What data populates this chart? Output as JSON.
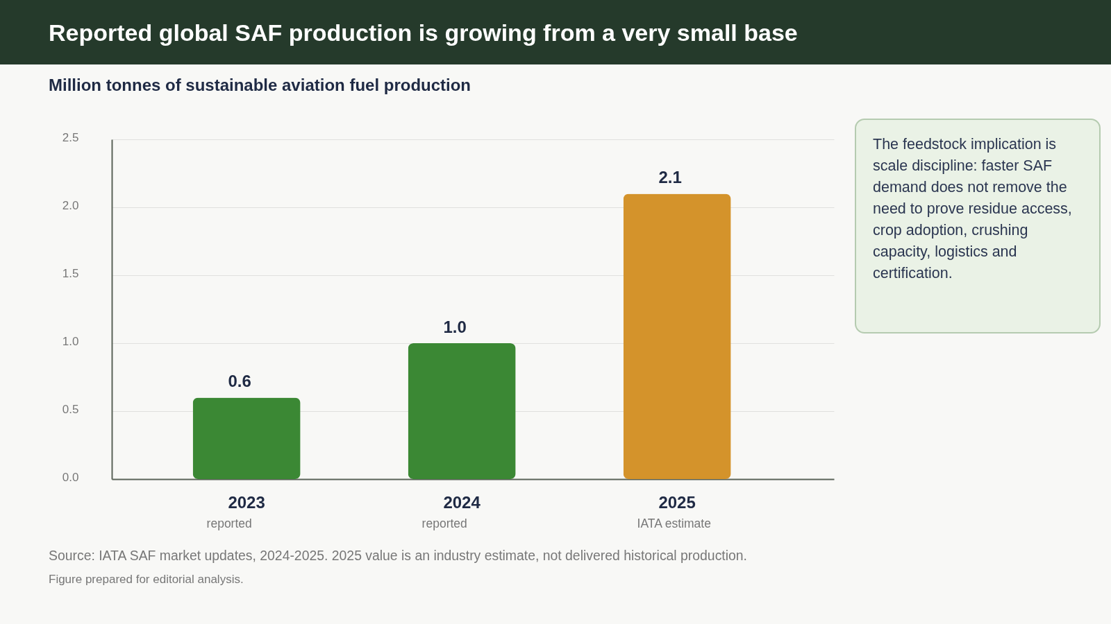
{
  "chart_data": {
    "type": "bar",
    "title": "Reported global SAF production is growing from a very small base",
    "subtitle": "Million tonnes of sustainable aviation fuel production",
    "categories": [
      "2023",
      "2024",
      "2025"
    ],
    "values": [
      0.6,
      1.0,
      2.1
    ],
    "colors": [
      "#3b8834",
      "#3b8834",
      "#d4932b"
    ],
    "value_labels": [
      "0.6",
      "1.0",
      "2.1"
    ],
    "ylim": [
      0,
      2.5
    ],
    "yticks": [
      {
        "value": 0,
        "label": "0.0"
      },
      0.5,
      {
        "value": 1,
        "label": "1.0"
      },
      1.5,
      {
        "value": 2,
        "label": "2.0"
      },
      2.5
    ],
    "grid": "y",
    "annotations": [
      "The feedstock implication is scale discipline: faster SAF demand does not remove the need to prove residue access, crop adoption, crushing capacity, logistics and certification.",
      "reported",
      "reported",
      "IATA estimate",
      "Source: IATA SAF market updates, 2024-2025. 2025 value is an industry estimate, not delivered historical production.",
      "Figure prepared for editorial analysis."
    ]
  }
}
